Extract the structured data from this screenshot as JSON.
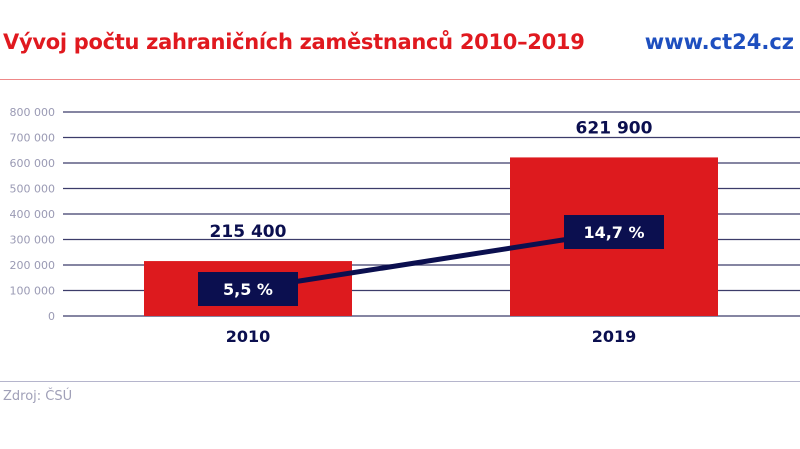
{
  "header": {
    "title": "Vývoj počtu zahraničních zaměstnanců 2010–2019",
    "site": "www.ct24.cz"
  },
  "footer": {
    "source": "Zdroj: ČSÚ"
  },
  "colors": {
    "bar": "#dd1a1e",
    "line": "#0b0f4f",
    "grid": "#3c3c6a",
    "tick": "#9a9ab4",
    "title": "#e0191f",
    "site": "#1e4fbf"
  },
  "chart_data": {
    "type": "bar",
    "categories": [
      "2010",
      "2019"
    ],
    "values": [
      215400,
      621900
    ],
    "value_labels": [
      "215 400",
      "621 900"
    ],
    "ylim": [
      0,
      800000
    ],
    "yticks": [
      0,
      100000,
      200000,
      300000,
      400000,
      500000,
      600000,
      700000,
      800000
    ],
    "ytick_labels": [
      "0",
      "100 000",
      "200 000",
      "300 000",
      "400 000",
      "500 000",
      "600 000",
      "700 000",
      "800 000"
    ],
    "grid": true,
    "overlay_line": {
      "type": "line",
      "values": [
        5.5,
        14.7
      ],
      "labels": [
        "5,5 %",
        "14,7 %"
      ]
    }
  }
}
